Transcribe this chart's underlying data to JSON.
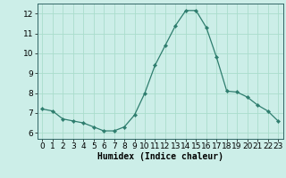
{
  "x": [
    0,
    1,
    2,
    3,
    4,
    5,
    6,
    7,
    8,
    9,
    10,
    11,
    12,
    13,
    14,
    15,
    16,
    17,
    18,
    19,
    20,
    21,
    22,
    23
  ],
  "y": [
    7.2,
    7.1,
    6.7,
    6.6,
    6.5,
    6.3,
    6.1,
    6.1,
    6.3,
    6.9,
    8.0,
    9.4,
    10.4,
    11.4,
    12.15,
    12.15,
    11.3,
    9.8,
    8.1,
    8.05,
    7.8,
    7.4,
    7.1,
    6.6
  ],
  "line_color": "#2e7d6e",
  "marker": "D",
  "marker_size": 2.2,
  "bg_color": "#cceee8",
  "grid_major_color": "#aaddcc",
  "grid_minor_color": "#bbeeee",
  "xlabel": "Humidex (Indice chaleur)",
  "xlim": [
    -0.5,
    23.5
  ],
  "ylim": [
    5.7,
    12.5
  ],
  "yticks": [
    6,
    7,
    8,
    9,
    10,
    11,
    12
  ],
  "xticks": [
    0,
    1,
    2,
    3,
    4,
    5,
    6,
    7,
    8,
    9,
    10,
    11,
    12,
    13,
    14,
    15,
    16,
    17,
    18,
    19,
    20,
    21,
    22,
    23
  ],
  "axis_fontsize": 7,
  "tick_fontsize": 6.5
}
